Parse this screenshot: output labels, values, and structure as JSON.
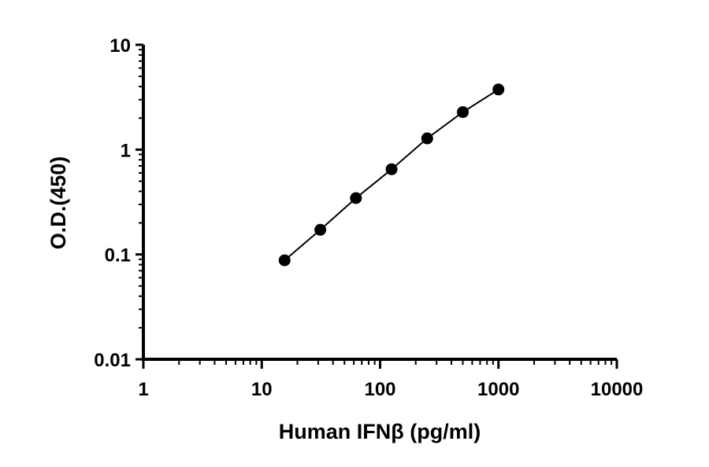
{
  "chart_data": {
    "type": "scatter",
    "xlabel": "Human IFNβ (pg/ml)",
    "ylabel": "O.D.(450)",
    "x_scale": "log",
    "y_scale": "log",
    "xlim": [
      1,
      10000
    ],
    "ylim": [
      0.01,
      10
    ],
    "x_ticks": [
      1,
      10,
      100,
      1000,
      10000
    ],
    "x_tick_labels": [
      "1",
      "10",
      "100",
      "1000",
      "10000"
    ],
    "y_ticks": [
      0.01,
      0.1,
      1,
      10
    ],
    "y_tick_labels": [
      "0.01",
      "0.1",
      "1",
      "10"
    ],
    "grid": false,
    "legend": "none",
    "series": [
      {
        "x": [
          15.6,
          31.25,
          62.5,
          125,
          250,
          500,
          1000
        ],
        "y": [
          0.088,
          0.172,
          0.345,
          0.65,
          1.28,
          2.28,
          3.75
        ]
      }
    ],
    "colors": {
      "marker": "#000000",
      "line": "#000000",
      "axis": "#000000"
    }
  }
}
